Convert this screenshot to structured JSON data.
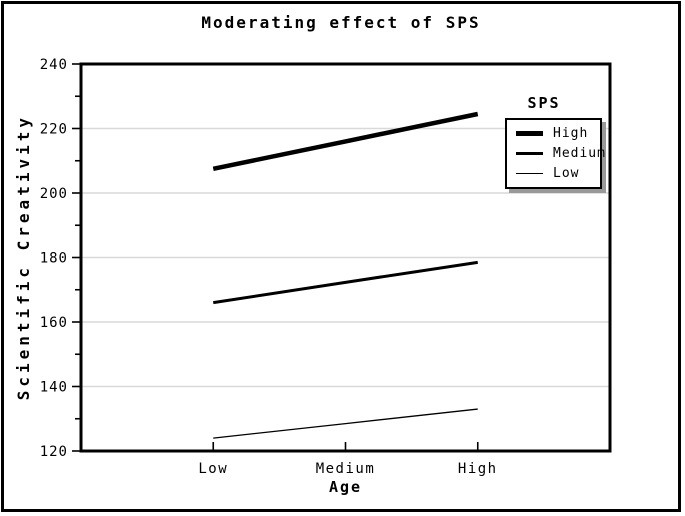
{
  "chart_data": {
    "type": "line",
    "title": "Moderating effect of SPS",
    "xlabel": "Age",
    "ylabel": "Scientific Creativity",
    "categories": [
      "Low",
      "Medium",
      "High"
    ],
    "series": [
      {
        "name": "High",
        "values": [
          207.5,
          216.0,
          224.5
        ],
        "color": "#000000",
        "stroke_width": 4.5
      },
      {
        "name": "Medium",
        "values": [
          166.0,
          172.3,
          178.5
        ],
        "color": "#000000",
        "stroke_width": 3.0
      },
      {
        "name": "Low",
        "values": [
          124.0,
          128.5,
          133.0
        ],
        "color": "#000000",
        "stroke_width": 1.3
      }
    ],
    "ylim": [
      120,
      240
    ],
    "ytick_major": 20,
    "ytick_minor": 10,
    "ytick_labels": [
      "120",
      "140",
      "160",
      "180",
      "200",
      "220",
      "240"
    ],
    "grid": "horizontal-major-gridlines",
    "gridline_color": "#d9d9d9",
    "frame_color": "#000000",
    "background": "#ffffff",
    "legend": {
      "title": "SPS",
      "entries": [
        "High",
        "Medium",
        "Low"
      ],
      "position": "inside-top-right"
    }
  }
}
